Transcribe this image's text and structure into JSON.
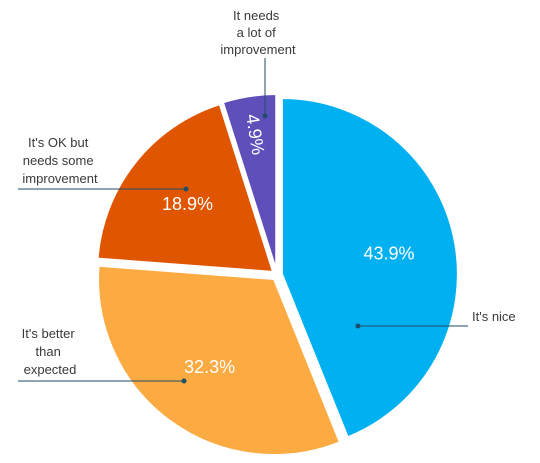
{
  "chart_data": {
    "type": "pie",
    "slices": [
      {
        "label": "It's nice",
        "value": 43.9,
        "value_label": "43.9%",
        "color": "#00b0f0"
      },
      {
        "label": "It's better than expected",
        "value": 32.3,
        "value_label": "32.3%",
        "color": "#fbab42"
      },
      {
        "label": "It's OK but needs some improvement",
        "value": 18.9,
        "value_label": "18.9%",
        "color": "#e05500"
      },
      {
        "label": "It needs a lot of improvement",
        "value": 4.9,
        "value_label": "4.9%",
        "color": "#5e4fbb"
      }
    ],
    "start_angle_deg": 0,
    "direction": "clockwise",
    "exploded": true,
    "legend": "none"
  }
}
